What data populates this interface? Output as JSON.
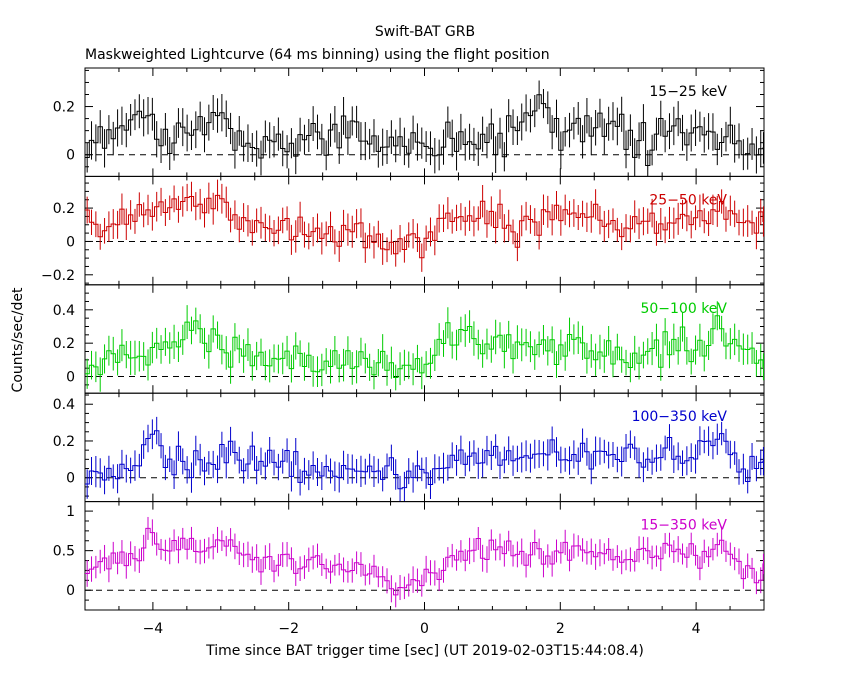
{
  "chart_data": {
    "type": "line",
    "title": "Swift-BAT GRB",
    "subtitle": "Maskweighted Lightcurve (64 ms binning) using the flight position",
    "xlabel": "Time since BAT trigger time [sec] (UT 2019-02-03T15:44:08.4)",
    "ylabel": "Counts/sec/det",
    "xlim": [
      -5,
      5
    ],
    "x_ticks": [
      -4,
      -2,
      0,
      2,
      4
    ],
    "x_tick_labels": [
      "−4",
      "−2",
      "0",
      "2",
      "4"
    ],
    "bin_width": 0.064,
    "panels": [
      {
        "name": "15−25 keV",
        "color": "#000000",
        "ylim": [
          -0.09,
          0.36
        ],
        "y_ticks": [
          0,
          0.2
        ],
        "y_tick_labels": [
          "0",
          "0.2"
        ],
        "err": 0.07,
        "anchors": [
          [
            -5,
            0.03
          ],
          [
            -4.7,
            0.08
          ],
          [
            -4.3,
            0.12
          ],
          [
            -4.0,
            0.14
          ],
          [
            -3.7,
            0.04
          ],
          [
            -3.3,
            0.1
          ],
          [
            -3.1,
            0.2
          ],
          [
            -2.8,
            0.08
          ],
          [
            -2.4,
            0.06
          ],
          [
            -2.0,
            0.02
          ],
          [
            -1.7,
            0.1
          ],
          [
            -1.4,
            0.08
          ],
          [
            -1.0,
            0.1
          ],
          [
            -0.6,
            0.04
          ],
          [
            -0.3,
            0.06
          ],
          [
            0.0,
            0.01
          ],
          [
            0.3,
            0.08
          ],
          [
            0.6,
            0.05
          ],
          [
            1.0,
            0.06
          ],
          [
            1.4,
            0.1
          ],
          [
            1.7,
            0.22
          ],
          [
            2.0,
            0.08
          ],
          [
            2.4,
            0.1
          ],
          [
            2.8,
            0.14
          ],
          [
            3.1,
            0.02
          ],
          [
            3.5,
            0.06
          ],
          [
            4.0,
            0.1
          ],
          [
            4.4,
            0.08
          ],
          [
            4.7,
            0.05
          ],
          [
            5.0,
            0.03
          ]
        ]
      },
      {
        "name": "25−50 keV",
        "color": "#cc0000",
        "ylim": [
          -0.26,
          0.39
        ],
        "y_ticks": [
          -0.2,
          0,
          0.2
        ],
        "y_tick_labels": [
          "−0.2",
          "0",
          "0.2"
        ],
        "err": 0.085,
        "anchors": [
          [
            -5,
            0.08
          ],
          [
            -4.6,
            0.14
          ],
          [
            -4.2,
            0.16
          ],
          [
            -3.8,
            0.2
          ],
          [
            -3.4,
            0.24
          ],
          [
            -3.0,
            0.22
          ],
          [
            -2.6,
            0.12
          ],
          [
            -2.2,
            0.1
          ],
          [
            -1.8,
            0.06
          ],
          [
            -1.4,
            0.05
          ],
          [
            -1.0,
            0.02
          ],
          [
            -0.6,
            0.01
          ],
          [
            -0.3,
            0.0
          ],
          [
            0.0,
            0.02
          ],
          [
            0.3,
            0.12
          ],
          [
            0.7,
            0.18
          ],
          [
            1.1,
            0.14
          ],
          [
            1.3,
            0.02
          ],
          [
            1.6,
            0.1
          ],
          [
            2.0,
            0.16
          ],
          [
            2.4,
            0.18
          ],
          [
            2.8,
            0.1
          ],
          [
            3.2,
            0.06
          ],
          [
            3.6,
            0.12
          ],
          [
            4.0,
            0.1
          ],
          [
            4.4,
            0.16
          ],
          [
            4.7,
            0.12
          ],
          [
            5.0,
            0.14
          ]
        ]
      },
      {
        "name": "50−100 keV",
        "color": "#00cc00",
        "ylim": [
          -0.1,
          0.55
        ],
        "y_ticks": [
          0,
          0.2,
          0.4
        ],
        "y_tick_labels": [
          "0",
          "0.2",
          "0.4"
        ],
        "err": 0.09,
        "anchors": [
          [
            -5,
            0.03
          ],
          [
            -4.6,
            0.08
          ],
          [
            -4.2,
            0.16
          ],
          [
            -3.9,
            0.18
          ],
          [
            -3.6,
            0.24
          ],
          [
            -3.4,
            0.32
          ],
          [
            -3.1,
            0.22
          ],
          [
            -2.7,
            0.16
          ],
          [
            -2.3,
            0.14
          ],
          [
            -2.0,
            0.12
          ],
          [
            -1.7,
            0.06
          ],
          [
            -1.4,
            0.1
          ],
          [
            -1.1,
            0.14
          ],
          [
            -0.8,
            0.08
          ],
          [
            -0.5,
            0.04
          ],
          [
            -0.2,
            0.04
          ],
          [
            0.0,
            0.0
          ],
          [
            0.3,
            0.2
          ],
          [
            0.6,
            0.26
          ],
          [
            0.9,
            0.2
          ],
          [
            1.3,
            0.16
          ],
          [
            1.7,
            0.2
          ],
          [
            2.1,
            0.18
          ],
          [
            2.5,
            0.16
          ],
          [
            2.9,
            0.12
          ],
          [
            3.3,
            0.14
          ],
          [
            3.7,
            0.2
          ],
          [
            4.1,
            0.18
          ],
          [
            4.3,
            0.32
          ],
          [
            4.6,
            0.12
          ],
          [
            5.0,
            0.1
          ]
        ]
      },
      {
        "name": "100−350 keV",
        "color": "#0000cc",
        "ylim": [
          -0.13,
          0.46
        ],
        "y_ticks": [
          0,
          0.2,
          0.4
        ],
        "y_tick_labels": [
          "0",
          "0.2",
          "0.4"
        ],
        "err": 0.075,
        "anchors": [
          [
            -5,
            0.0
          ],
          [
            -4.5,
            0.06
          ],
          [
            -4.2,
            0.1
          ],
          [
            -4.0,
            0.3
          ],
          [
            -3.8,
            0.08
          ],
          [
            -3.4,
            0.08
          ],
          [
            -3.0,
            0.12
          ],
          [
            -2.6,
            0.1
          ],
          [
            -2.2,
            0.08
          ],
          [
            -1.8,
            0.04
          ],
          [
            -1.4,
            0.06
          ],
          [
            -1.0,
            0.05
          ],
          [
            -0.6,
            0.03
          ],
          [
            -0.2,
            0.02
          ],
          [
            0.0,
            0.0
          ],
          [
            0.4,
            0.08
          ],
          [
            0.8,
            0.1
          ],
          [
            1.2,
            0.12
          ],
          [
            1.6,
            0.16
          ],
          [
            2.0,
            0.14
          ],
          [
            2.4,
            0.12
          ],
          [
            2.8,
            0.16
          ],
          [
            3.2,
            0.12
          ],
          [
            3.6,
            0.14
          ],
          [
            4.0,
            0.1
          ],
          [
            4.3,
            0.24
          ],
          [
            4.7,
            0.04
          ],
          [
            5.0,
            0.14
          ]
        ]
      },
      {
        "name": "15−350 keV",
        "color": "#cc00cc",
        "ylim": [
          -0.25,
          1.12
        ],
        "y_ticks": [
          0,
          0.5,
          1
        ],
        "y_tick_labels": [
          "0",
          "0.5",
          "1"
        ],
        "err": 0.15,
        "anchors": [
          [
            -5,
            0.15
          ],
          [
            -4.6,
            0.4
          ],
          [
            -4.2,
            0.45
          ],
          [
            -4.0,
            0.8
          ],
          [
            -3.8,
            0.5
          ],
          [
            -3.4,
            0.6
          ],
          [
            -3.0,
            0.65
          ],
          [
            -2.6,
            0.45
          ],
          [
            -2.2,
            0.35
          ],
          [
            -1.8,
            0.3
          ],
          [
            -1.4,
            0.25
          ],
          [
            -1.0,
            0.3
          ],
          [
            -0.7,
            0.2
          ],
          [
            -0.4,
            0.05
          ],
          [
            -0.1,
            0.05
          ],
          [
            0.1,
            0.15
          ],
          [
            0.5,
            0.45
          ],
          [
            0.9,
            0.55
          ],
          [
            1.3,
            0.5
          ],
          [
            1.7,
            0.45
          ],
          [
            2.1,
            0.5
          ],
          [
            2.5,
            0.45
          ],
          [
            2.9,
            0.4
          ],
          [
            3.3,
            0.45
          ],
          [
            3.7,
            0.5
          ],
          [
            4.1,
            0.35
          ],
          [
            4.4,
            0.7
          ],
          [
            4.7,
            0.2
          ],
          [
            5.0,
            0.3
          ]
        ]
      }
    ]
  }
}
